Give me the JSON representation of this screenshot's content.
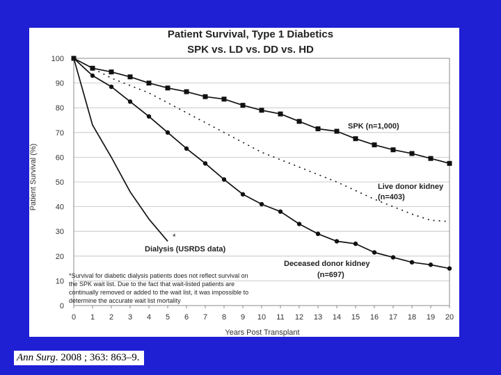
{
  "chart_data": {
    "type": "line",
    "title": "Patient Survival, Type 1 Diabetics",
    "subtitle": "SPK vs. LD vs. DD vs. HD",
    "xlabel": "Years Post Transplant",
    "ylabel": "Patient Survival (%)",
    "xlim": [
      0,
      20
    ],
    "ylim": [
      0,
      100
    ],
    "xticks": [
      "0",
      "1",
      "2",
      "3",
      "4",
      "5",
      "6",
      "7",
      "8",
      "9",
      "10",
      "11",
      "12",
      "13",
      "14",
      "15",
      "16",
      "17",
      "18",
      "19",
      "20"
    ],
    "yticks": [
      "0",
      "10",
      "20",
      "30",
      "40",
      "50",
      "60",
      "70",
      "80",
      "90",
      "100"
    ],
    "grid": true,
    "series": [
      {
        "name": "SPK (n=1,000)",
        "style": "solid-square-markers",
        "x": [
          0,
          1,
          2,
          3,
          4,
          5,
          6,
          7,
          8,
          9,
          10,
          11,
          12,
          13,
          14,
          15,
          16,
          17,
          18,
          19,
          20
        ],
        "y": [
          100,
          96,
          94.5,
          92.5,
          90,
          88,
          86.5,
          84.5,
          83.5,
          81,
          79,
          77.5,
          74.5,
          71.5,
          70.5,
          67.5,
          65,
          63,
          61.5,
          59.5,
          57.5
        ]
      },
      {
        "name": "Live donor kidney (n=403)",
        "style": "dotted",
        "x": [
          0,
          2,
          4,
          6,
          8,
          10,
          12,
          14,
          16,
          18,
          19,
          20
        ],
        "y": [
          100,
          92,
          86,
          78,
          70,
          62,
          56,
          50,
          43,
          37,
          34.5,
          34
        ]
      },
      {
        "name": "Deceased donor kidney (n=697)",
        "style": "solid-round-markers",
        "x": [
          0,
          1,
          2,
          3,
          4,
          5,
          6,
          7,
          8,
          9,
          10,
          11,
          12,
          13,
          14,
          15,
          16,
          17,
          18,
          19,
          20
        ],
        "y": [
          100,
          93,
          88.5,
          82.5,
          76.5,
          70,
          63.5,
          57.5,
          51,
          45,
          41,
          38,
          33,
          29,
          26,
          25,
          21.5,
          19.5,
          17.5,
          16.5,
          15
        ]
      },
      {
        "name": "Dialysis (USRDS data)",
        "style": "solid",
        "x": [
          0,
          1,
          2,
          3,
          4,
          5
        ],
        "y": [
          100,
          73,
          60,
          46,
          35,
          26
        ]
      }
    ],
    "annotations": {
      "dialysis_asterisk": "*",
      "footnote": [
        "*Survival for diabetic dialysis patients does not reflect survival on",
        "the SPK wait list. Due to the fact that wait-listed patients are",
        "continually removed or added to the wait list, it was impossible to",
        "determine the accurate wait list mortality"
      ]
    },
    "labels": {
      "spk": "SPK (n=1,000)",
      "live": [
        "Live donor kidney",
        "(n=403)"
      ],
      "deceased": [
        "Deceased donor kidney",
        "(n=697)"
      ],
      "dialysis": "Dialysis (USRDS data)"
    }
  },
  "citation": {
    "journal": "Ann Surg",
    "rest": ". 2008 ; 363: 863–9."
  }
}
